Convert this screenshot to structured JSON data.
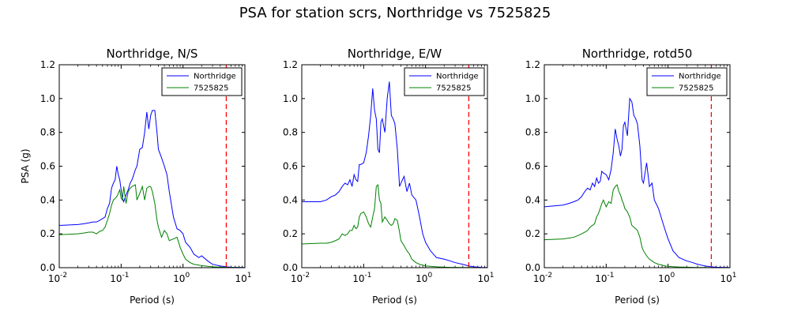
{
  "figure": {
    "title": "PSA for station scrs, Northridge vs 7525825"
  },
  "chart_data": [
    {
      "type": "line",
      "title": "Northridge, N/S",
      "xlabel": "Period (s)",
      "ylabel": "PSA (g)",
      "xscale": "log",
      "xlim": [
        0.01,
        10
      ],
      "ylim": [
        0,
        1.2
      ],
      "yticks": [
        "0.0",
        "0.2",
        "0.4",
        "0.6",
        "0.8",
        "1.0",
        "1.2"
      ],
      "xticks": [
        {
          "base": "10",
          "exp": "-2",
          "value": 0.01
        },
        {
          "base": "10",
          "exp": "-1",
          "value": 0.1
        },
        {
          "base": "10",
          "exp": "0",
          "value": 1
        },
        {
          "base": "10",
          "exp": "1",
          "value": 10
        }
      ],
      "grid": false,
      "legend": "top-right",
      "vline": {
        "x": 5,
        "color": "#ff0000",
        "style": "dashed"
      },
      "series": [
        {
          "name": "Northridge",
          "color": "#0000ff",
          "x": [
            0.01,
            0.02,
            0.025,
            0.03,
            0.035,
            0.04,
            0.045,
            0.05,
            0.055,
            0.06,
            0.065,
            0.07,
            0.075,
            0.08,
            0.085,
            0.09,
            0.095,
            0.1,
            0.105,
            0.11,
            0.12,
            0.13,
            0.14,
            0.15,
            0.17,
            0.18,
            0.2,
            0.22,
            0.24,
            0.26,
            0.28,
            0.3,
            0.32,
            0.35,
            0.38,
            0.4,
            0.45,
            0.5,
            0.55,
            0.6,
            0.7,
            0.8,
            0.9,
            1.0,
            1.1,
            1.3,
            1.5,
            1.8,
            2.0,
            2.5,
            3.0,
            4.0,
            5.0,
            6.0,
            8.0,
            10.0
          ],
          "y": [
            0.25,
            0.255,
            0.26,
            0.265,
            0.27,
            0.27,
            0.28,
            0.29,
            0.3,
            0.35,
            0.38,
            0.47,
            0.5,
            0.52,
            0.6,
            0.55,
            0.52,
            0.46,
            0.41,
            0.39,
            0.43,
            0.46,
            0.5,
            0.52,
            0.58,
            0.6,
            0.7,
            0.71,
            0.8,
            0.92,
            0.82,
            0.9,
            0.93,
            0.93,
            0.8,
            0.7,
            0.65,
            0.6,
            0.55,
            0.45,
            0.3,
            0.23,
            0.22,
            0.2,
            0.15,
            0.12,
            0.08,
            0.06,
            0.07,
            0.04,
            0.02,
            0.01,
            0.005,
            0.003,
            0.002,
            0.001
          ]
        },
        {
          "name": "7525825",
          "color": "#008000",
          "x": [
            0.01,
            0.02,
            0.025,
            0.03,
            0.035,
            0.04,
            0.045,
            0.05,
            0.055,
            0.06,
            0.065,
            0.07,
            0.075,
            0.08,
            0.085,
            0.09,
            0.095,
            0.1,
            0.105,
            0.11,
            0.12,
            0.13,
            0.14,
            0.15,
            0.17,
            0.18,
            0.2,
            0.22,
            0.24,
            0.26,
            0.28,
            0.3,
            0.32,
            0.35,
            0.38,
            0.4,
            0.45,
            0.5,
            0.55,
            0.6,
            0.7,
            0.8,
            0.9,
            1.0,
            1.1,
            1.3,
            1.5,
            1.8,
            2.0,
            2.5,
            3.0,
            4.0,
            5.0,
            6.0,
            8.0,
            10.0
          ],
          "y": [
            0.195,
            0.2,
            0.205,
            0.21,
            0.21,
            0.2,
            0.215,
            0.22,
            0.24,
            0.28,
            0.32,
            0.37,
            0.4,
            0.41,
            0.42,
            0.44,
            0.46,
            0.41,
            0.4,
            0.48,
            0.38,
            0.45,
            0.47,
            0.48,
            0.49,
            0.4,
            0.44,
            0.48,
            0.4,
            0.47,
            0.48,
            0.48,
            0.45,
            0.38,
            0.28,
            0.24,
            0.18,
            0.22,
            0.2,
            0.16,
            0.17,
            0.18,
            0.12,
            0.08,
            0.05,
            0.03,
            0.02,
            0.015,
            0.012,
            0.008,
            0.005,
            0.003,
            0.002,
            0.001,
            0.001,
            0.0005
          ]
        }
      ]
    },
    {
      "type": "line",
      "title": "Northridge, E/W",
      "xlabel": "Period (s)",
      "ylabel": "",
      "xscale": "log",
      "xlim": [
        0.01,
        10
      ],
      "ylim": [
        0,
        1.2
      ],
      "yticks": [
        "0.0",
        "0.2",
        "0.4",
        "0.6",
        "0.8",
        "1.0",
        "1.2"
      ],
      "xticks": [
        {
          "base": "10",
          "exp": "-2",
          "value": 0.01
        },
        {
          "base": "10",
          "exp": "-1",
          "value": 0.1
        },
        {
          "base": "10",
          "exp": "0",
          "value": 1
        },
        {
          "base": "10",
          "exp": "1",
          "value": 10
        }
      ],
      "grid": false,
      "legend": "top-right",
      "vline": {
        "x": 5,
        "color": "#ff0000",
        "style": "dashed"
      },
      "series": [
        {
          "name": "Northridge",
          "color": "#0000ff",
          "x": [
            0.01,
            0.02,
            0.025,
            0.03,
            0.035,
            0.04,
            0.045,
            0.05,
            0.055,
            0.06,
            0.065,
            0.07,
            0.075,
            0.08,
            0.085,
            0.09,
            0.1,
            0.11,
            0.12,
            0.13,
            0.14,
            0.15,
            0.16,
            0.17,
            0.18,
            0.19,
            0.2,
            0.22,
            0.24,
            0.26,
            0.28,
            0.3,
            0.32,
            0.35,
            0.38,
            0.4,
            0.45,
            0.5,
            0.55,
            0.6,
            0.7,
            0.8,
            0.9,
            1.0,
            1.2,
            1.5,
            2.0,
            2.5,
            3.0,
            4.0,
            5.0,
            6.0,
            8.0,
            10.0
          ],
          "y": [
            0.39,
            0.39,
            0.4,
            0.42,
            0.43,
            0.45,
            0.48,
            0.5,
            0.49,
            0.52,
            0.48,
            0.55,
            0.52,
            0.51,
            0.61,
            0.61,
            0.62,
            0.68,
            0.78,
            0.9,
            1.06,
            0.93,
            0.88,
            0.7,
            0.68,
            0.86,
            0.88,
            0.8,
            1.0,
            1.1,
            0.9,
            0.88,
            0.85,
            0.7,
            0.48,
            0.5,
            0.54,
            0.45,
            0.5,
            0.43,
            0.4,
            0.3,
            0.2,
            0.15,
            0.1,
            0.06,
            0.05,
            0.04,
            0.03,
            0.02,
            0.01,
            0.005,
            0.002,
            0.001
          ]
        },
        {
          "name": "7525825",
          "color": "#008000",
          "x": [
            0.01,
            0.02,
            0.025,
            0.03,
            0.035,
            0.04,
            0.045,
            0.05,
            0.055,
            0.06,
            0.065,
            0.07,
            0.075,
            0.08,
            0.085,
            0.09,
            0.1,
            0.11,
            0.12,
            0.13,
            0.14,
            0.15,
            0.16,
            0.17,
            0.18,
            0.19,
            0.2,
            0.22,
            0.24,
            0.26,
            0.28,
            0.3,
            0.32,
            0.35,
            0.38,
            0.4,
            0.45,
            0.5,
            0.55,
            0.6,
            0.7,
            0.8,
            0.9,
            1.0,
            1.2,
            1.5,
            2.0,
            2.5,
            3.0,
            4.0,
            5.0,
            6.0,
            8.0,
            10.0
          ],
          "y": [
            0.14,
            0.145,
            0.145,
            0.15,
            0.16,
            0.17,
            0.2,
            0.19,
            0.2,
            0.22,
            0.22,
            0.25,
            0.23,
            0.24,
            0.3,
            0.32,
            0.33,
            0.3,
            0.26,
            0.24,
            0.3,
            0.35,
            0.48,
            0.49,
            0.4,
            0.38,
            0.27,
            0.3,
            0.28,
            0.26,
            0.25,
            0.26,
            0.29,
            0.28,
            0.21,
            0.16,
            0.13,
            0.1,
            0.08,
            0.05,
            0.03,
            0.02,
            0.015,
            0.01,
            0.008,
            0.005,
            0.003,
            0.002,
            0.002,
            0.001,
            0.001,
            0.0005,
            0.0003,
            0.0002
          ]
        }
      ]
    },
    {
      "type": "line",
      "title": "Northridge, rotd50",
      "xlabel": "Period (s)",
      "ylabel": "",
      "xscale": "log",
      "xlim": [
        0.01,
        10
      ],
      "ylim": [
        0,
        1.2
      ],
      "yticks": [
        "0.0",
        "0.2",
        "0.4",
        "0.6",
        "0.8",
        "1.0",
        "1.2"
      ],
      "xticks": [
        {
          "base": "10",
          "exp": "-2",
          "value": 0.01
        },
        {
          "base": "10",
          "exp": "-1",
          "value": 0.1
        },
        {
          "base": "10",
          "exp": "0",
          "value": 1
        },
        {
          "base": "10",
          "exp": "1",
          "value": 10
        }
      ],
      "grid": false,
      "legend": "top-right",
      "vline": {
        "x": 5,
        "color": "#ff0000",
        "style": "dashed"
      },
      "series": [
        {
          "name": "Northridge",
          "color": "#0000ff",
          "x": [
            0.01,
            0.02,
            0.025,
            0.03,
            0.035,
            0.04,
            0.045,
            0.05,
            0.055,
            0.06,
            0.065,
            0.07,
            0.075,
            0.08,
            0.085,
            0.09,
            0.1,
            0.11,
            0.12,
            0.13,
            0.14,
            0.15,
            0.16,
            0.17,
            0.18,
            0.19,
            0.2,
            0.22,
            0.24,
            0.26,
            0.28,
            0.3,
            0.32,
            0.35,
            0.38,
            0.4,
            0.45,
            0.5,
            0.55,
            0.6,
            0.7,
            0.8,
            0.9,
            1.0,
            1.2,
            1.5,
            2.0,
            2.5,
            3.0,
            4.0,
            5.0,
            6.0,
            8.0,
            10.0
          ],
          "y": [
            0.36,
            0.37,
            0.38,
            0.39,
            0.4,
            0.42,
            0.45,
            0.47,
            0.46,
            0.5,
            0.48,
            0.53,
            0.5,
            0.51,
            0.57,
            0.56,
            0.55,
            0.52,
            0.58,
            0.68,
            0.82,
            0.76,
            0.72,
            0.66,
            0.7,
            0.84,
            0.86,
            0.78,
            1.0,
            0.98,
            0.9,
            0.88,
            0.85,
            0.72,
            0.52,
            0.5,
            0.62,
            0.48,
            0.5,
            0.4,
            0.35,
            0.28,
            0.22,
            0.17,
            0.1,
            0.06,
            0.04,
            0.03,
            0.02,
            0.01,
            0.005,
            0.003,
            0.002,
            0.001
          ]
        },
        {
          "name": "7525825",
          "color": "#008000",
          "x": [
            0.01,
            0.02,
            0.025,
            0.03,
            0.035,
            0.04,
            0.045,
            0.05,
            0.055,
            0.06,
            0.065,
            0.07,
            0.075,
            0.08,
            0.085,
            0.09,
            0.1,
            0.11,
            0.12,
            0.13,
            0.14,
            0.15,
            0.16,
            0.17,
            0.18,
            0.19,
            0.2,
            0.22,
            0.24,
            0.26,
            0.28,
            0.3,
            0.32,
            0.35,
            0.38,
            0.4,
            0.45,
            0.5,
            0.55,
            0.6,
            0.7,
            0.8,
            0.9,
            1.0,
            1.2,
            1.5,
            2.0,
            2.5,
            3.0,
            4.0,
            5.0,
            6.0,
            8.0,
            10.0
          ],
          "y": [
            0.165,
            0.17,
            0.175,
            0.18,
            0.19,
            0.2,
            0.21,
            0.22,
            0.24,
            0.25,
            0.26,
            0.3,
            0.32,
            0.35,
            0.38,
            0.4,
            0.36,
            0.39,
            0.38,
            0.46,
            0.48,
            0.49,
            0.45,
            0.43,
            0.4,
            0.38,
            0.35,
            0.33,
            0.3,
            0.25,
            0.24,
            0.23,
            0.22,
            0.18,
            0.12,
            0.1,
            0.07,
            0.05,
            0.04,
            0.03,
            0.02,
            0.015,
            0.01,
            0.008,
            0.006,
            0.004,
            0.003,
            0.002,
            0.001,
            0.001,
            0.0005,
            0.0003,
            0.0002,
            0.0001
          ]
        }
      ]
    }
  ]
}
